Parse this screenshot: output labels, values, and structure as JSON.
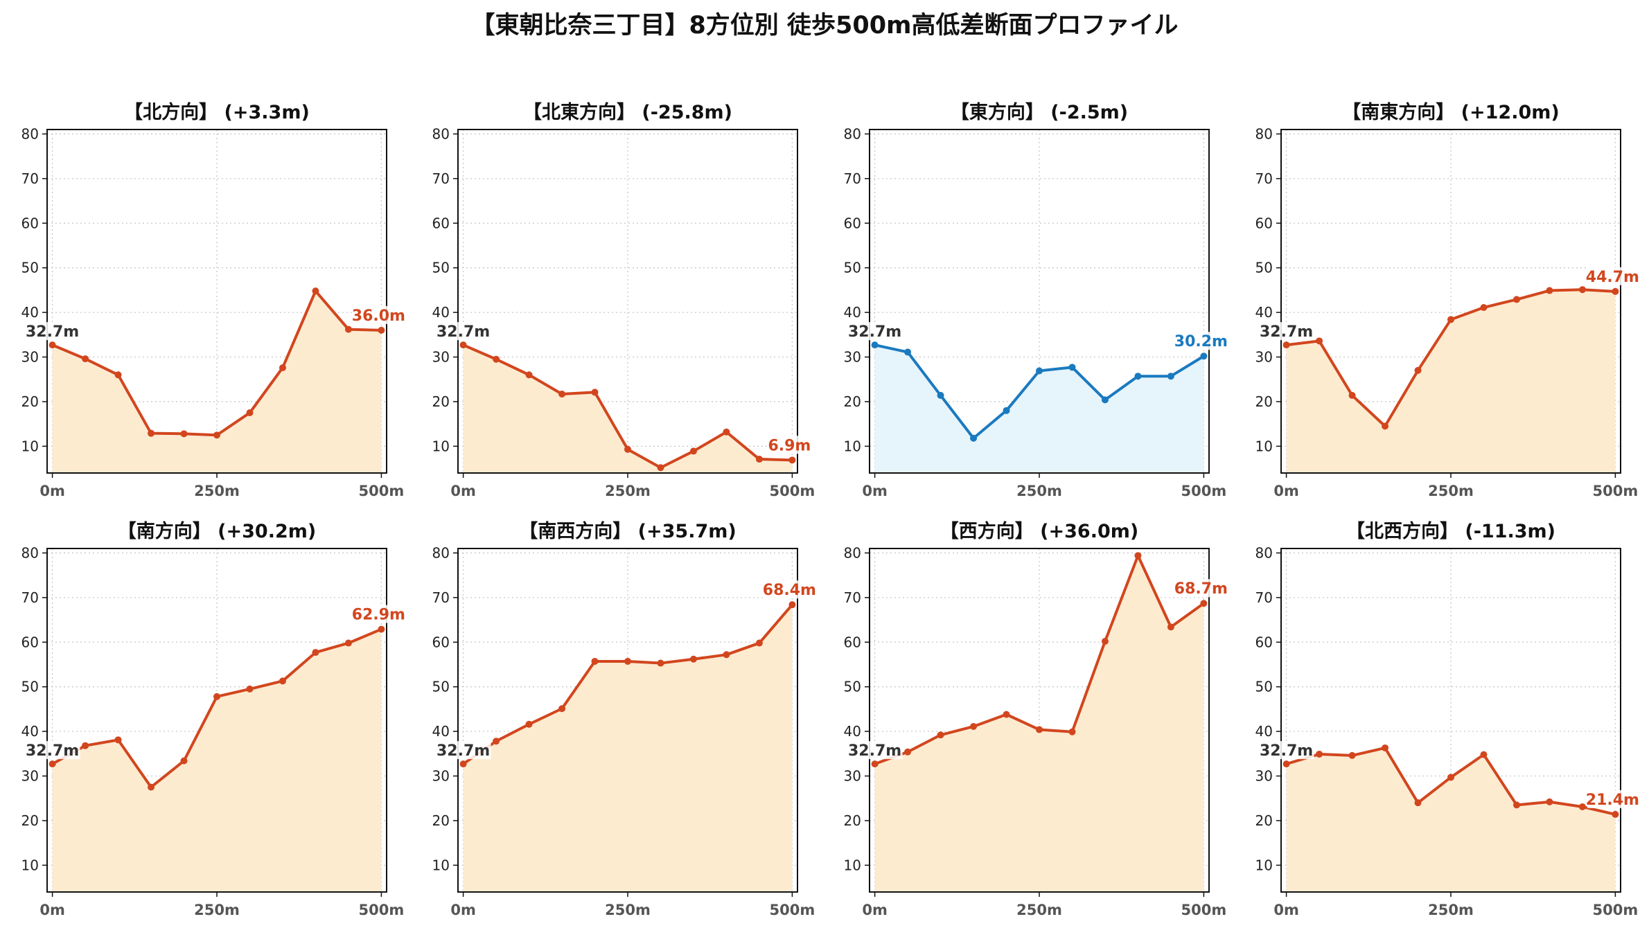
{
  "title": "【東朝比奈三丁目】8方位別 徒歩500m高低差断面プロファイル",
  "colors": {
    "descent_line": "#D2461E",
    "descent_fill": "#FDEBD0",
    "ascent_line": "#1A7ABF",
    "ascent_fill": "#E6F4FB",
    "start_label": "#333333",
    "grid": "#c8c8c8"
  },
  "chart_data": [
    {
      "type": "area",
      "title": "【北方向】 (+3.3m)",
      "style": "descent",
      "x": [
        0,
        50,
        100,
        150,
        200,
        250,
        300,
        350,
        400,
        450,
        500
      ],
      "values": [
        32.7,
        29.6,
        26.0,
        12.9,
        12.8,
        12.5,
        17.5,
        27.6,
        44.8,
        36.2,
        36.0
      ],
      "start_label": "32.7m",
      "end_label": "36.0m",
      "xticks": [
        "0m",
        "250m",
        "500m"
      ],
      "ylim": [
        4,
        81
      ],
      "yticks": [
        10,
        20,
        30,
        40,
        50,
        60,
        70,
        80
      ],
      "grid": true
    },
    {
      "type": "area",
      "title": "【北東方向】 (-25.8m)",
      "style": "descent",
      "x": [
        0,
        50,
        100,
        150,
        200,
        250,
        300,
        350,
        400,
        450,
        500
      ],
      "values": [
        32.7,
        29.5,
        26.0,
        21.7,
        22.1,
        9.3,
        5.2,
        8.9,
        13.2,
        7.1,
        6.9
      ],
      "start_label": "32.7m",
      "end_label": "6.9m",
      "xticks": [
        "0m",
        "250m",
        "500m"
      ],
      "ylim": [
        4,
        81
      ],
      "yticks": [
        10,
        20,
        30,
        40,
        50,
        60,
        70,
        80
      ],
      "grid": true
    },
    {
      "type": "area",
      "title": "【東方向】 (-2.5m)",
      "style": "ascent",
      "x": [
        0,
        50,
        100,
        150,
        200,
        250,
        300,
        350,
        400,
        450,
        500
      ],
      "values": [
        32.7,
        31.1,
        21.4,
        11.8,
        18.0,
        26.9,
        27.7,
        20.4,
        25.7,
        25.7,
        30.2
      ],
      "start_label": "32.7m",
      "end_label": "30.2m",
      "xticks": [
        "0m",
        "250m",
        "500m"
      ],
      "ylim": [
        4,
        81
      ],
      "yticks": [
        10,
        20,
        30,
        40,
        50,
        60,
        70,
        80
      ],
      "grid": true
    },
    {
      "type": "area",
      "title": "【南東方向】 (+12.0m)",
      "style": "descent",
      "x": [
        0,
        50,
        100,
        150,
        200,
        250,
        300,
        350,
        400,
        450,
        500
      ],
      "values": [
        32.7,
        33.6,
        21.4,
        14.5,
        27.0,
        38.4,
        41.1,
        42.9,
        44.9,
        45.1,
        44.7
      ],
      "start_label": "32.7m",
      "end_label": "44.7m",
      "xticks": [
        "0m",
        "250m",
        "500m"
      ],
      "ylim": [
        4,
        81
      ],
      "yticks": [
        10,
        20,
        30,
        40,
        50,
        60,
        70,
        80
      ],
      "grid": true
    },
    {
      "type": "area",
      "title": "【南方向】 (+30.2m)",
      "style": "descent",
      "x": [
        0,
        50,
        100,
        150,
        200,
        250,
        300,
        350,
        400,
        450,
        500
      ],
      "values": [
        32.7,
        36.8,
        38.1,
        27.5,
        33.4,
        47.8,
        49.5,
        51.3,
        57.7,
        59.8,
        62.9
      ],
      "start_label": "32.7m",
      "end_label": "62.9m",
      "xticks": [
        "0m",
        "250m",
        "500m"
      ],
      "ylim": [
        4,
        81
      ],
      "yticks": [
        10,
        20,
        30,
        40,
        50,
        60,
        70,
        80
      ],
      "grid": true
    },
    {
      "type": "area",
      "title": "【南西方向】 (+35.7m)",
      "style": "descent",
      "x": [
        0,
        50,
        100,
        150,
        200,
        250,
        300,
        350,
        400,
        450,
        500
      ],
      "values": [
        32.7,
        37.8,
        41.6,
        45.1,
        55.7,
        55.7,
        55.3,
        56.2,
        57.2,
        59.8,
        68.4
      ],
      "start_label": "32.7m",
      "end_label": "68.4m",
      "xticks": [
        "0m",
        "250m",
        "500m"
      ],
      "ylim": [
        4,
        81
      ],
      "yticks": [
        10,
        20,
        30,
        40,
        50,
        60,
        70,
        80
      ],
      "grid": true
    },
    {
      "type": "area",
      "title": "【西方向】 (+36.0m)",
      "style": "descent",
      "x": [
        0,
        50,
        100,
        150,
        200,
        250,
        300,
        350,
        400,
        450,
        500
      ],
      "values": [
        32.7,
        35.4,
        39.2,
        41.1,
        43.8,
        40.4,
        39.9,
        60.2,
        79.4,
        63.4,
        68.7
      ],
      "start_label": "32.7m",
      "end_label": "68.7m",
      "xticks": [
        "0m",
        "250m",
        "500m"
      ],
      "ylim": [
        4,
        81
      ],
      "yticks": [
        10,
        20,
        30,
        40,
        50,
        60,
        70,
        80
      ],
      "grid": true
    },
    {
      "type": "area",
      "title": "【北西方向】 (-11.3m)",
      "style": "descent",
      "x": [
        0,
        50,
        100,
        150,
        200,
        250,
        300,
        350,
        400,
        450,
        500
      ],
      "values": [
        32.7,
        34.9,
        34.6,
        36.3,
        24.0,
        29.7,
        34.8,
        23.5,
        24.2,
        23.1,
        21.4
      ],
      "start_label": "32.7m",
      "end_label": "21.4m",
      "xticks": [
        "0m",
        "250m",
        "500m"
      ],
      "ylim": [
        4,
        81
      ],
      "yticks": [
        10,
        20,
        30,
        40,
        50,
        60,
        70,
        80
      ],
      "grid": true
    }
  ]
}
